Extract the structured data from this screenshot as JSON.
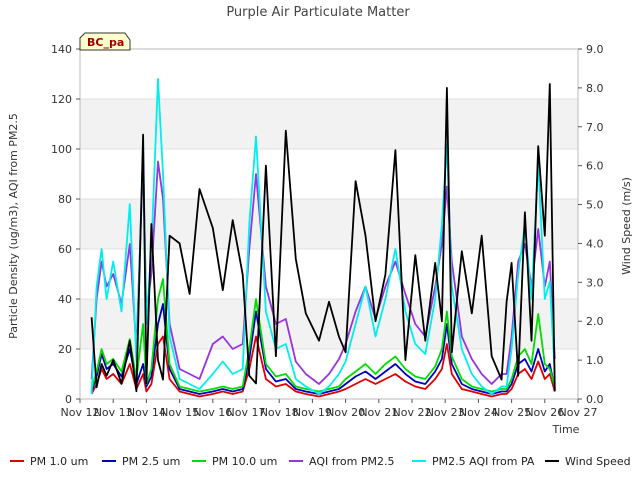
{
  "chart_data": {
    "type": "line",
    "title": "Purple Air Particulate Matter",
    "site_label": "BC_pa",
    "xlabel": "Time",
    "ylabel": "Particle Density (ug/m3), AQI from PM2.5",
    "y2label": "Wind Speed (m/s)",
    "ylim": [
      0,
      140
    ],
    "y2lim": [
      0,
      9
    ],
    "xlim": [
      12,
      27
    ],
    "x_ticks": [
      12,
      13,
      14,
      15,
      16,
      17,
      18,
      19,
      20,
      21,
      22,
      23,
      24,
      25,
      26,
      27
    ],
    "x_tick_labels": [
      "Nov 12",
      "Nov 13",
      "Nov 14",
      "Nov 15",
      "Nov 16",
      "Nov 17",
      "Nov 18",
      "Nov 19",
      "Nov 20",
      "Nov 21",
      "Nov 22",
      "Nov 23",
      "Nov 24",
      "Nov 25",
      "Nov 26",
      "Nov 27"
    ],
    "y_ticks": [
      0,
      20,
      40,
      60,
      80,
      100,
      120,
      140
    ],
    "y_tick_labels": [
      "0",
      "20",
      "40",
      "60",
      "80",
      "100",
      "120",
      "140"
    ],
    "y2_ticks": [
      0,
      1,
      2,
      3,
      4,
      5,
      6,
      7,
      8,
      9
    ],
    "y2_tick_labels": [
      "0.0",
      "1.0",
      "2.0",
      "3.0",
      "4.0",
      "5.0",
      "6.0",
      "7.0",
      "8.0",
      "9.0"
    ],
    "x": [
      12.35,
      12.5,
      12.65,
      12.8,
      13.0,
      13.25,
      13.5,
      13.7,
      13.9,
      14.0,
      14.15,
      14.35,
      14.5,
      14.7,
      15.0,
      15.3,
      15.6,
      16.0,
      16.3,
      16.6,
      16.9,
      17.1,
      17.3,
      17.6,
      17.9,
      18.2,
      18.5,
      18.8,
      19.2,
      19.5,
      19.8,
      20.0,
      20.3,
      20.6,
      20.9,
      21.2,
      21.5,
      21.8,
      22.1,
      22.4,
      22.7,
      22.9,
      23.05,
      23.2,
      23.5,
      23.8,
      24.1,
      24.4,
      24.7,
      24.85,
      25.0,
      25.2,
      25.4,
      25.6,
      25.8,
      26.0,
      26.15,
      26.3
    ],
    "series": [
      {
        "name": "PM 1.0 um",
        "color": "#dd0000",
        "axis": "left",
        "values": [
          2,
          6,
          12,
          8,
          10,
          6,
          14,
          4,
          10,
          3,
          6,
          22,
          25,
          8,
          3,
          2,
          1,
          2,
          3,
          2,
          3,
          12,
          25,
          8,
          5,
          6,
          3,
          2,
          1,
          2,
          3,
          4,
          6,
          8,
          6,
          8,
          10,
          7,
          5,
          4,
          8,
          12,
          22,
          10,
          4,
          3,
          2,
          1,
          2,
          2,
          4,
          10,
          12,
          8,
          15,
          8,
          10,
          3
        ]
      },
      {
        "name": "PM 2.5 um",
        "color": "#0000bb",
        "axis": "left",
        "values": [
          3,
          9,
          18,
          12,
          14,
          9,
          20,
          6,
          14,
          5,
          9,
          30,
          38,
          12,
          4,
          3,
          2,
          3,
          4,
          3,
          4,
          16,
          35,
          12,
          7,
          8,
          4,
          3,
          2,
          3,
          4,
          6,
          9,
          11,
          8,
          11,
          14,
          10,
          7,
          6,
          11,
          16,
          30,
          14,
          6,
          4,
          3,
          2,
          3,
          3,
          6,
          14,
          16,
          11,
          20,
          11,
          14,
          4
        ]
      },
      {
        "name": "PM 10.0 um",
        "color": "#00dd00",
        "axis": "left",
        "values": [
          4,
          11,
          20,
          14,
          16,
          11,
          24,
          8,
          30,
          6,
          12,
          40,
          48,
          14,
          5,
          4,
          3,
          4,
          5,
          4,
          5,
          20,
          40,
          14,
          9,
          10,
          5,
          4,
          3,
          4,
          5,
          8,
          11,
          14,
          10,
          14,
          17,
          12,
          9,
          8,
          13,
          20,
          35,
          17,
          8,
          5,
          4,
          3,
          4,
          4,
          8,
          17,
          20,
          14,
          34,
          14,
          12,
          5
        ]
      },
      {
        "name": "AQI from PM2.5",
        "color": "#9933dd",
        "axis": "left",
        "values": [
          8,
          40,
          55,
          45,
          50,
          38,
          62,
          20,
          95,
          35,
          50,
          95,
          80,
          30,
          12,
          10,
          8,
          22,
          25,
          20,
          22,
          60,
          90,
          45,
          30,
          32,
          15,
          10,
          6,
          10,
          16,
          22,
          35,
          45,
          32,
          45,
          55,
          42,
          30,
          25,
          45,
          62,
          85,
          55,
          25,
          16,
          10,
          6,
          10,
          10,
          25,
          55,
          62,
          45,
          68,
          45,
          55,
          16
        ]
      },
      {
        "name": "PM2.5 AQI from PA",
        "color": "#00eeee",
        "axis": "left",
        "values": [
          2,
          45,
          60,
          40,
          55,
          35,
          78,
          15,
          100,
          30,
          60,
          128,
          90,
          25,
          8,
          6,
          4,
          10,
          15,
          10,
          12,
          70,
          105,
          35,
          20,
          22,
          8,
          5,
          2,
          5,
          10,
          15,
          30,
          45,
          25,
          40,
          60,
          35,
          22,
          18,
          40,
          70,
          102,
          45,
          20,
          10,
          5,
          2,
          5,
          5,
          20,
          50,
          70,
          40,
          95,
          40,
          47,
          10
        ]
      },
      {
        "name": "Wind Speed",
        "color": "#000000",
        "axis": "right",
        "values": [
          2.1,
          0.3,
          0.9,
          0.6,
          1.0,
          0.4,
          1.5,
          0.2,
          6.8,
          0.4,
          4.5,
          1.0,
          0.5,
          4.2,
          4.0,
          2.7,
          5.4,
          4.4,
          2.8,
          4.6,
          3.2,
          0.6,
          0.4,
          6.0,
          1.1,
          6.9,
          3.6,
          2.2,
          1.5,
          2.5,
          1.6,
          1.2,
          5.6,
          4.2,
          2.0,
          3.2,
          6.4,
          1.0,
          3.7,
          1.5,
          3.5,
          2.0,
          8.0,
          1.2,
          3.8,
          2.2,
          4.2,
          1.1,
          0.5,
          2.5,
          3.5,
          0.6,
          4.8,
          1.5,
          6.5,
          4.2,
          8.1,
          0.2
        ]
      }
    ]
  }
}
